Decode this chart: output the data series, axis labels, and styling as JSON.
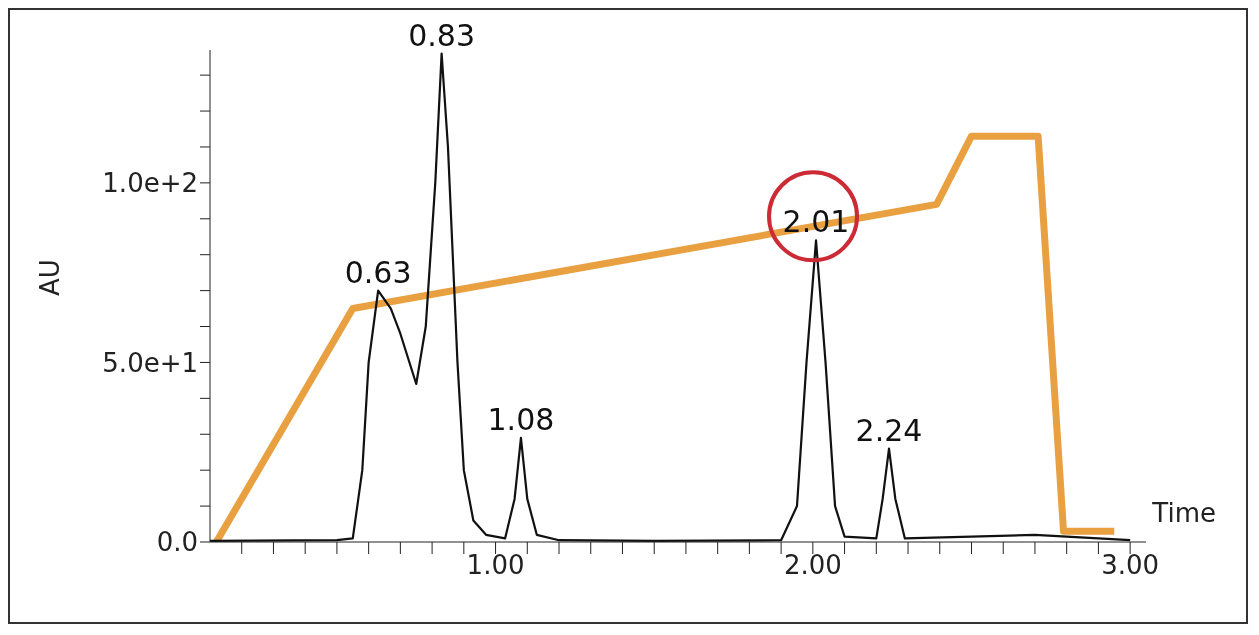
{
  "chart_data": {
    "type": "line",
    "xlabel": "Time",
    "ylabel": "AU",
    "xlim": [
      0.1,
      3.05
    ],
    "ylim": [
      0,
      137
    ],
    "xticks": [
      {
        "value": 0.2,
        "label": null
      },
      {
        "value": 0.3,
        "label": null
      },
      {
        "value": 0.4,
        "label": null
      },
      {
        "value": 0.5,
        "label": null
      },
      {
        "value": 0.6,
        "label": null
      },
      {
        "value": 0.7,
        "label": null
      },
      {
        "value": 0.8,
        "label": null
      },
      {
        "value": 0.9,
        "label": null
      },
      {
        "value": 1,
        "label": "1.00"
      },
      {
        "value": 1.1,
        "label": null
      },
      {
        "value": 1.2,
        "label": null
      },
      {
        "value": 1.3,
        "label": null
      },
      {
        "value": 1.4,
        "label": null
      },
      {
        "value": 1.5,
        "label": null
      },
      {
        "value": 1.6,
        "label": null
      },
      {
        "value": 1.7,
        "label": null
      },
      {
        "value": 1.8,
        "label": null
      },
      {
        "value": 1.9,
        "label": null
      },
      {
        "value": 2,
        "label": "2.00"
      },
      {
        "value": 2.1,
        "label": null
      },
      {
        "value": 2.2,
        "label": null
      },
      {
        "value": 2.3,
        "label": null
      },
      {
        "value": 2.4,
        "label": null
      },
      {
        "value": 2.5,
        "label": null
      },
      {
        "value": 2.6,
        "label": null
      },
      {
        "value": 2.7,
        "label": null
      },
      {
        "value": 2.8,
        "label": null
      },
      {
        "value": 2.9,
        "label": null
      },
      {
        "value": 3,
        "label": "3.00"
      }
    ],
    "yticks": [
      {
        "value": 0,
        "label": "0.0"
      },
      {
        "value": 10,
        "label": null
      },
      {
        "value": 20,
        "label": null
      },
      {
        "value": 30,
        "label": null
      },
      {
        "value": 40,
        "label": null
      },
      {
        "value": 50,
        "label": "5.0e+1"
      },
      {
        "value": 60,
        "label": null
      },
      {
        "value": 70,
        "label": null
      },
      {
        "value": 80,
        "label": null
      },
      {
        "value": 90,
        "label": null
      },
      {
        "value": 100,
        "label": "1.0e+2"
      },
      {
        "value": 110,
        "label": null
      },
      {
        "value": 120,
        "label": null
      },
      {
        "value": 130,
        "label": null
      }
    ],
    "grid": false,
    "legend": false,
    "marker": "none",
    "series": [
      {
        "color": "#e8a040",
        "x": [
          0.12,
          0.55,
          2.39,
          2.5,
          2.71,
          2.79,
          2.95
        ],
        "values": [
          0,
          65,
          94,
          113,
          113,
          3,
          3
        ]
      },
      {
        "color": "#111111",
        "x": [
          0.1,
          0.5,
          0.55,
          0.58,
          0.6,
          0.63,
          0.67,
          0.7,
          0.75,
          0.78,
          0.81,
          0.83,
          0.85,
          0.88,
          0.9,
          0.93,
          0.97,
          1.03,
          1.06,
          1.08,
          1.1,
          1.13,
          1.2,
          1.5,
          1.9,
          1.95,
          1.98,
          2.01,
          2.04,
          2.07,
          2.1,
          2.2,
          2.22,
          2.24,
          2.26,
          2.29,
          2.5,
          2.7,
          2.9,
          3.0
        ],
        "values": [
          0.3,
          0.5,
          1,
          20,
          50,
          70,
          65,
          58,
          44,
          60,
          100,
          136,
          110,
          50,
          20,
          6,
          2,
          1,
          12,
          29,
          12,
          2,
          0.5,
          0.3,
          0.5,
          10,
          50,
          84,
          50,
          10,
          1.5,
          1,
          12,
          26,
          12,
          1,
          1.5,
          2,
          1,
          0.5
        ]
      }
    ],
    "annotations": [
      {
        "text": "0.63",
        "x": 0.63,
        "y": 70
      },
      {
        "text": "0.83",
        "x": 0.83,
        "y": 136
      },
      {
        "text": "1.08",
        "x": 1.08,
        "y": 29
      },
      {
        "text": "2.01",
        "x": 2.01,
        "y": 84
      },
      {
        "text": "2.24",
        "x": 2.24,
        "y": 26
      }
    ]
  }
}
